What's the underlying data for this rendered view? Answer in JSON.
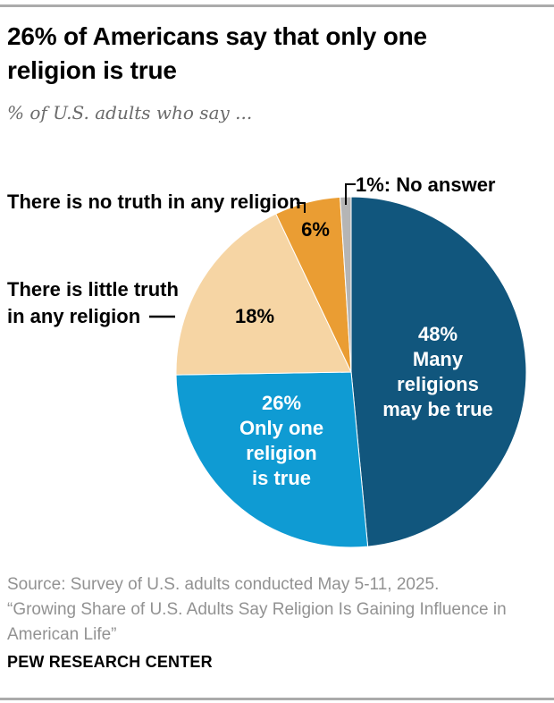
{
  "header": {
    "title": "26% of Americans say that only one\nreligion is true",
    "subtitle": "% of U.S. adults who say ..."
  },
  "chart_data": {
    "type": "pie",
    "title": "26% of Americans say that only one religion is true",
    "units": "% of U.S. adults",
    "legend_position": "labels-on-and-around-pie",
    "slices": [
      {
        "label": "Many religions may be true",
        "value": 48,
        "color": "#11567d",
        "inside_label": "48%\nMany religions\nmay be true"
      },
      {
        "label": "Only one religion is true",
        "value": 26,
        "color": "#0f9bd3",
        "inside_label": "26%\nOnly one\nreligion\nis true"
      },
      {
        "label": "There is little truth in any religion",
        "value": 18,
        "color": "#f6d5a4",
        "pct_label": "18%",
        "callout_label": "There is little truth\nin any religion"
      },
      {
        "label": "There is no truth in any religion",
        "value": 6,
        "color": "#ea9d33",
        "pct_label": "6%",
        "callout_label": "There is no truth in any religion"
      },
      {
        "label": "No answer",
        "value": 1,
        "color": "#b5b5b5",
        "callout_label": "1%: No answer"
      }
    ],
    "start_angle_deg": 0,
    "direction": "clockwise"
  },
  "footer": {
    "source": "Source: Survey of U.S. adults conducted May 5-11, 2025.",
    "quote": "“Growing Share of U.S. Adults Say Religion Is Gaining Influence in\nAmerican Life”",
    "brand": "PEW RESEARCH CENTER"
  },
  "colors": {
    "dark_blue": "#11567d",
    "light_blue": "#0f9bd3",
    "tan": "#f6d5a4",
    "orange": "#ea9d33",
    "gray_sliver": "#b5b5b5",
    "rule_gray": "#ababab",
    "subtitle_gray": "#6b6b6b",
    "source_gray": "#929292"
  }
}
